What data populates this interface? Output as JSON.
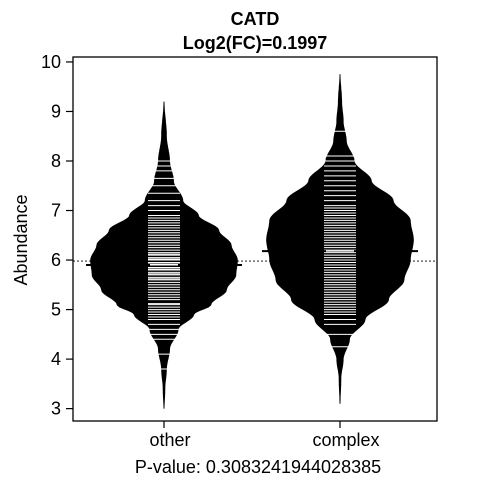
{
  "chart_data": {
    "type": "beanplot",
    "title": "CATD",
    "subtitle": "Log2(FC)=0.1997",
    "xlabel": "P-value: 0.3083241944028385",
    "ylabel": "Abundance",
    "ylim": [
      2.75,
      10.1
    ],
    "yticks": [
      3,
      4,
      5,
      6,
      7,
      8,
      9,
      10
    ],
    "categories": [
      "other",
      "complex"
    ],
    "overall_mean": 5.98,
    "groups": [
      {
        "name": "other",
        "mean": 5.9,
        "min": 3.0,
        "max": 9.2,
        "density": [
          [
            3.0,
            0.0
          ],
          [
            3.4,
            0.01
          ],
          [
            3.8,
            0.03
          ],
          [
            4.2,
            0.07
          ],
          [
            4.6,
            0.18
          ],
          [
            4.9,
            0.38
          ],
          [
            5.1,
            0.6
          ],
          [
            5.4,
            0.8
          ],
          [
            5.7,
            0.92
          ],
          [
            6.0,
            0.94
          ],
          [
            6.3,
            0.86
          ],
          [
            6.6,
            0.7
          ],
          [
            6.9,
            0.44
          ],
          [
            7.2,
            0.24
          ],
          [
            7.6,
            0.12
          ],
          [
            8.0,
            0.07
          ],
          [
            8.5,
            0.03
          ],
          [
            9.2,
            0.0
          ]
        ],
        "observations": [
          3.8,
          4.1,
          4.4,
          4.5,
          4.6,
          4.7,
          4.8,
          4.85,
          4.9,
          4.95,
          5.0,
          5.05,
          5.1,
          5.12,
          5.2,
          5.25,
          5.3,
          5.35,
          5.4,
          5.45,
          5.5,
          5.55,
          5.6,
          5.62,
          5.65,
          5.7,
          5.72,
          5.75,
          5.8,
          5.82,
          5.85,
          5.9,
          5.92,
          5.95,
          6.0,
          6.02,
          6.05,
          6.1,
          6.12,
          6.15,
          6.2,
          6.25,
          6.3,
          6.35,
          6.4,
          6.45,
          6.5,
          6.55,
          6.6,
          6.65,
          6.7,
          6.75,
          6.8,
          6.85,
          6.9,
          7.0,
          7.1,
          7.2,
          7.35,
          7.5,
          7.65,
          7.8,
          7.9,
          8.0
        ]
      },
      {
        "name": "complex",
        "mean": 6.18,
        "min": 3.1,
        "max": 9.75,
        "density": [
          [
            3.1,
            0.0
          ],
          [
            3.6,
            0.01
          ],
          [
            4.0,
            0.04
          ],
          [
            4.4,
            0.12
          ],
          [
            4.8,
            0.32
          ],
          [
            5.2,
            0.62
          ],
          [
            5.6,
            0.82
          ],
          [
            6.0,
            0.9
          ],
          [
            6.4,
            0.94
          ],
          [
            6.8,
            0.9
          ],
          [
            7.2,
            0.68
          ],
          [
            7.6,
            0.4
          ],
          [
            8.0,
            0.18
          ],
          [
            8.4,
            0.08
          ],
          [
            8.8,
            0.04
          ],
          [
            9.2,
            0.02
          ],
          [
            9.75,
            0.0
          ]
        ],
        "observations": [
          4.25,
          4.5,
          4.7,
          4.8,
          4.9,
          4.95,
          5.0,
          5.05,
          5.1,
          5.15,
          5.2,
          5.25,
          5.3,
          5.35,
          5.4,
          5.45,
          5.5,
          5.55,
          5.6,
          5.65,
          5.7,
          5.75,
          5.8,
          5.85,
          5.9,
          5.95,
          6.0,
          6.05,
          6.1,
          6.15,
          6.2,
          6.25,
          6.3,
          6.35,
          6.4,
          6.45,
          6.5,
          6.55,
          6.6,
          6.65,
          6.7,
          6.75,
          6.8,
          6.85,
          6.9,
          6.95,
          7.0,
          7.05,
          7.1,
          7.2,
          7.3,
          7.4,
          7.5,
          7.6,
          7.7,
          7.8,
          7.9,
          8.0,
          8.1,
          8.6
        ]
      }
    ]
  }
}
